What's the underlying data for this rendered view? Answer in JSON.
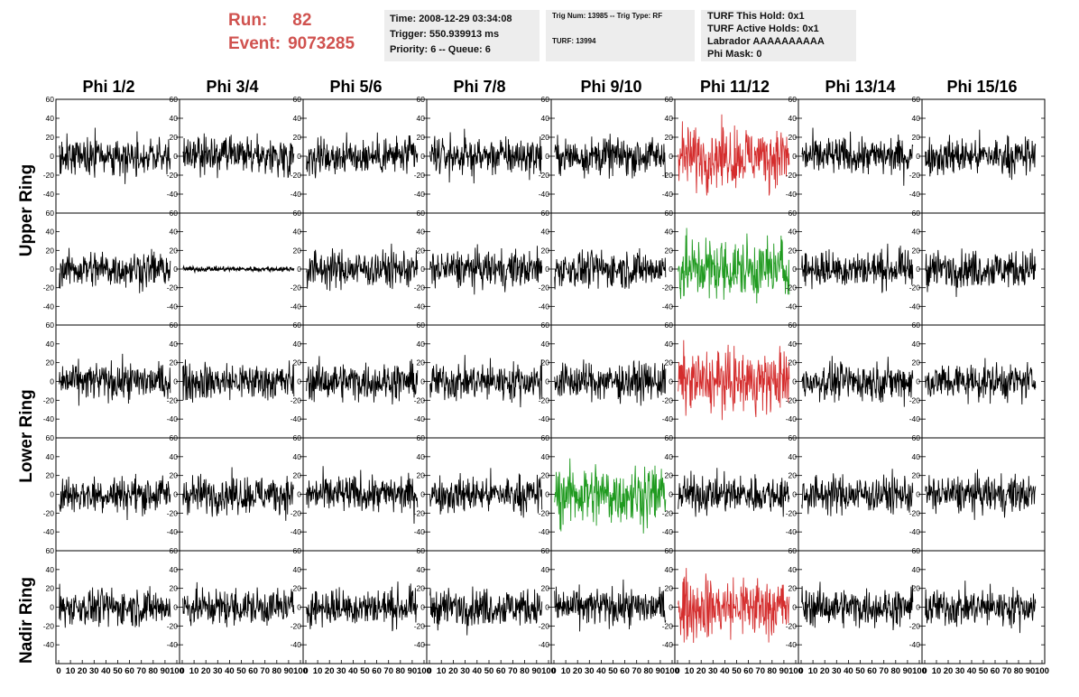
{
  "header": {
    "run_label": "Run:",
    "run_value": "82",
    "event_label": "Event:",
    "event_value": "9073285"
  },
  "info": {
    "time": "Time: 2008-12-29 03:34:08",
    "trigger": "Trigger: 550.939913 ms",
    "priority": "Priority: 6 -- Queue: 6",
    "trig_num": "Trig Num: 13985 -- Trig Type: RF",
    "turf": "TURF: 13994",
    "turf_this_hold": "TURF This Hold: 0x1",
    "turf_active_holds": "TURF Active Holds: 0x1",
    "labrador": "Labrador AAAAAAAAAA",
    "phi_mask": "Phi Mask: 0"
  },
  "columns": [
    "Phi 1/2",
    "Phi 3/4",
    "Phi 5/6",
    "Phi 7/8",
    "Phi 9/10",
    "Phi 11/12",
    "Phi 13/14",
    "Phi 15/16"
  ],
  "rings": [
    "Upper Ring",
    "Lower Ring",
    "Nadir Ring"
  ],
  "colors": {
    "normal": "#000000",
    "triggered_red": "#d42d2d",
    "triggered_green": "#1f9a1f",
    "header_red": "#d0524f",
    "info_bg": "#ededed"
  },
  "chart_data": {
    "type": "line",
    "description_rows": 5,
    "xlim": [
      0,
      100
    ],
    "ylim": [
      -60,
      60
    ],
    "x_ticks": [
      0,
      10,
      20,
      30,
      40,
      50,
      60,
      70,
      80,
      90,
      100
    ],
    "y_ticks": [
      -40,
      -20,
      0,
      20,
      40,
      60
    ],
    "highlight": [
      {
        "row": 0,
        "col": 5,
        "color": "red"
      },
      {
        "row": 1,
        "col": 5,
        "color": "green"
      },
      {
        "row": 2,
        "col": 5,
        "color": "red"
      },
      {
        "row": 3,
        "col": 4,
        "color": "green"
      },
      {
        "row": 4,
        "col": 5,
        "color": "red"
      }
    ],
    "flat_channels": [
      {
        "row": 1,
        "col": 1
      }
    ]
  }
}
